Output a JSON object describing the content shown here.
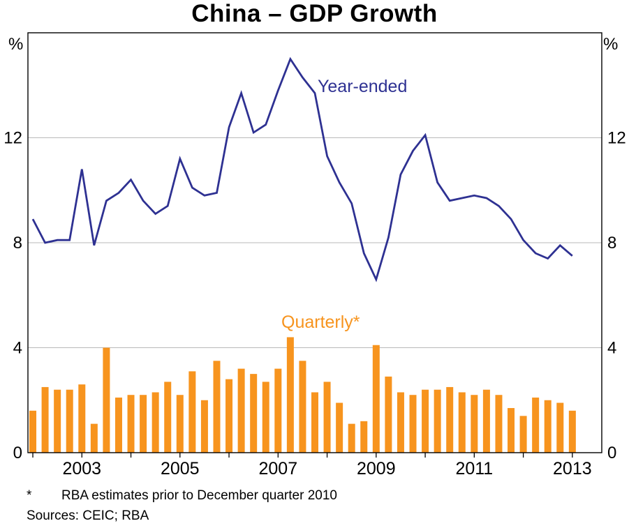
{
  "title": "China – GDP Growth",
  "footnote": {
    "marker": "*",
    "text": "RBA estimates prior to December quarter 2010",
    "sources": "Sources: CEIC; RBA"
  },
  "chart_data": {
    "type": "mixed",
    "title": "China – GDP Growth",
    "unit": "%",
    "x_start": "2002 Q1",
    "x_end": "2013 Q1",
    "frequency": "quarterly",
    "x_domain": [
      2001.9,
      2013.6
    ],
    "x_tick_years": [
      2002,
      2003,
      2004,
      2005,
      2006,
      2007,
      2008,
      2009,
      2010,
      2011,
      2012,
      2013
    ],
    "x_label_years": [
      2003,
      2005,
      2007,
      2009,
      2011,
      2013
    ],
    "ylim": [
      0,
      16
    ],
    "y_ticks": [
      0,
      4,
      8,
      12
    ],
    "grid": "horizontal",
    "grid_color": "#b9b9b9",
    "axis_color": "#000000",
    "legend_position": "inline-labels",
    "series": [
      {
        "name": "Year-ended",
        "type": "line",
        "color": "#2e3192",
        "values": [
          8.9,
          8.0,
          8.1,
          8.1,
          10.8,
          7.9,
          9.6,
          9.9,
          10.4,
          9.6,
          9.1,
          9.4,
          11.2,
          10.1,
          9.8,
          9.9,
          12.4,
          13.7,
          12.2,
          12.5,
          13.8,
          15.0,
          14.3,
          13.7,
          11.3,
          10.3,
          9.5,
          7.6,
          6.6,
          8.2,
          10.6,
          11.5,
          12.1,
          10.3,
          9.6,
          9.7,
          9.8,
          9.7,
          9.4,
          8.9,
          8.1,
          7.6,
          7.4,
          7.9,
          7.5
        ]
      },
      {
        "name": "Quarterly*",
        "type": "bar",
        "color": "#f7941e",
        "values": [
          1.6,
          2.5,
          2.4,
          2.4,
          2.6,
          1.1,
          4.0,
          2.1,
          2.2,
          2.2,
          2.3,
          2.7,
          2.2,
          3.1,
          2.0,
          3.5,
          2.8,
          3.2,
          3.0,
          2.7,
          3.2,
          4.4,
          3.5,
          2.3,
          2.7,
          1.9,
          1.1,
          1.2,
          4.1,
          2.9,
          2.3,
          2.2,
          2.4,
          2.4,
          2.5,
          2.3,
          2.2,
          2.4,
          2.2,
          1.7,
          1.4,
          2.1,
          2.0,
          1.9,
          1.6
        ]
      }
    ]
  }
}
